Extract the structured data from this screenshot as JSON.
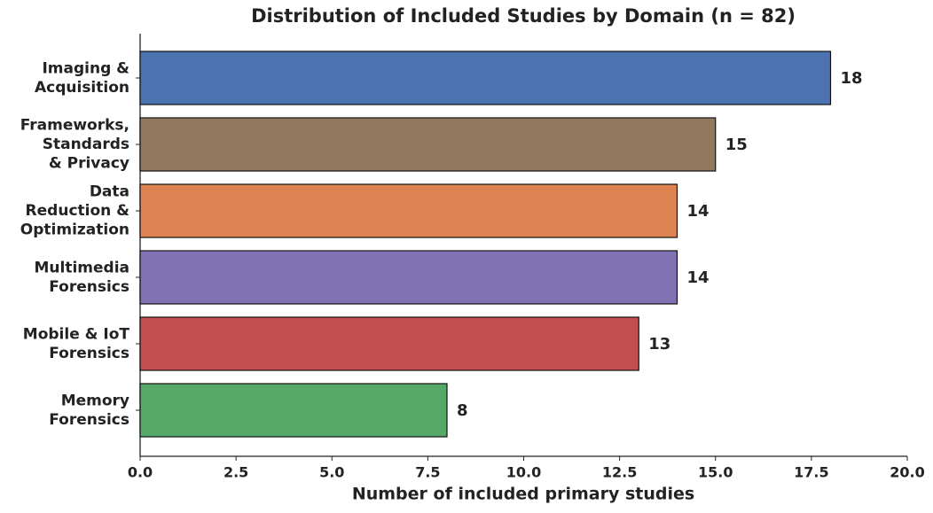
{
  "chart_data": {
    "type": "barh",
    "title": "Distribution of Included Studies by Domain (n = 82)",
    "x_label": "Number of included primary studies",
    "categories": [
      "Imaging &\nAcquisition",
      "Frameworks,\nStandards\n& Privacy",
      "Data\nReduction &\nOptimization",
      "Multimedia\nForensics",
      "Mobile & IoT\nForensics",
      "Memory\nForensics"
    ],
    "values": [
      18,
      15,
      14,
      14,
      13,
      8
    ],
    "colors": [
      "#4c72b0",
      "#937860",
      "#dd8452",
      "#8172b3",
      "#c44e52",
      "#55a868"
    ],
    "xlim": [
      0,
      20
    ],
    "xticks": [
      {
        "value": 0,
        "label": "0.0"
      },
      2.5,
      {
        "value": 5,
        "label": "5.0"
      },
      7.5,
      {
        "value": 10,
        "label": "10.0"
      },
      12.5,
      {
        "value": 15,
        "label": "15.0"
      },
      17.5,
      {
        "value": 20,
        "label": "20.0"
      }
    ],
    "grid": false
  }
}
